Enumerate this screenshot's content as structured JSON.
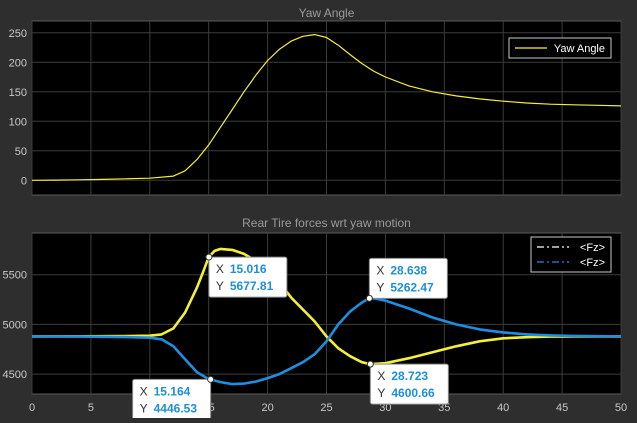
{
  "chart_data": [
    {
      "type": "line",
      "title": "Yaw Angle",
      "xlim": [
        0,
        50
      ],
      "ylim": [
        -25,
        270
      ],
      "xticks": [
        "0",
        "5",
        "10",
        "15",
        "20",
        "25",
        "30",
        "35",
        "40",
        "45",
        "50"
      ],
      "yticks": [
        0,
        50,
        100,
        150,
        200,
        250
      ],
      "show_x_tick_labels": false,
      "grid": true,
      "legend_position": "top-right",
      "series": [
        {
          "name": "Yaw Angle",
          "color": "#f5ef36",
          "style": "solid",
          "x": [
            0,
            2,
            4,
            6,
            8,
            10,
            12,
            13,
            14,
            15,
            16,
            17,
            18,
            19,
            20,
            21,
            22,
            23,
            24,
            25,
            26,
            27,
            28,
            29,
            30,
            32,
            34,
            36,
            38,
            40,
            42,
            44,
            46,
            48,
            50
          ],
          "y": [
            0,
            0.3,
            0.8,
            1.5,
            2.5,
            3.5,
            7,
            16,
            35,
            60,
            90,
            120,
            150,
            178,
            203,
            222,
            236,
            244,
            247,
            242,
            229,
            213,
            198,
            185,
            175,
            160,
            150,
            143,
            138,
            134,
            131,
            129,
            128,
            127,
            126
          ]
        }
      ]
    },
    {
      "type": "line",
      "title": "Rear Tire forces wrt yaw motion",
      "xlim": [
        0,
        50
      ],
      "ylim": [
        4300,
        5920
      ],
      "xticks": [
        "0",
        "5",
        "10",
        "15",
        "20",
        "25",
        "30",
        "35",
        "40",
        "45",
        "50"
      ],
      "yticks": [
        4500,
        5000,
        5500
      ],
      "show_x_tick_labels": true,
      "grid": true,
      "legend_position": "top-right",
      "series": [
        {
          "name": "<Fz>",
          "color": "#f5ef36",
          "legend_color": "#ffffff",
          "style": "dashdot",
          "x": [
            0,
            4,
            8,
            10,
            11,
            12,
            13,
            14,
            14.5,
            15,
            15.5,
            16,
            17,
            18,
            19,
            20,
            21,
            22,
            23,
            24,
            25,
            26,
            27,
            28,
            28.7,
            30,
            32,
            34,
            36,
            38,
            40,
            42,
            44,
            46,
            48,
            50
          ],
          "y": [
            4880,
            4881,
            4883,
            4887,
            4900,
            4960,
            5120,
            5370,
            5520,
            5677.81,
            5740,
            5760,
            5750,
            5710,
            5640,
            5550,
            5420,
            5270,
            5150,
            5030,
            4880,
            4760,
            4680,
            4620,
            4600.66,
            4610,
            4660,
            4720,
            4780,
            4830,
            4860,
            4872,
            4878,
            4880,
            4880,
            4880
          ]
        },
        {
          "name": "<Fz>",
          "color": "#1c8fe0",
          "legend_color": "#1c8fe0",
          "style": "dashdot",
          "x": [
            0,
            4,
            8,
            10,
            11,
            12,
            13,
            14,
            15,
            15.16,
            16,
            17,
            18,
            19,
            20,
            21,
            22,
            23,
            24,
            25,
            26,
            27,
            28,
            28.64,
            29,
            30,
            32,
            34,
            36,
            38,
            40,
            42,
            44,
            46,
            48,
            50
          ],
          "y": [
            4880,
            4878,
            4873,
            4866,
            4850,
            4780,
            4650,
            4520,
            4450,
            4446.53,
            4420,
            4400,
            4405,
            4425,
            4460,
            4500,
            4560,
            4620,
            4700,
            4830,
            5000,
            5130,
            5220,
            5262.47,
            5263,
            5240,
            5160,
            5070,
            5000,
            4950,
            4920,
            4900,
            4890,
            4885,
            4882,
            4880
          ]
        }
      ],
      "annotations": [
        {
          "name": "datatip-1",
          "x": 15.016,
          "y": 5677.81,
          "x_label": "X",
          "y_label": "Y",
          "x_text": "15.016",
          "y_text": "5677.81",
          "box": "below-right"
        },
        {
          "name": "datatip-2",
          "x": 28.638,
          "y": 5262.47,
          "x_label": "X",
          "y_label": "Y",
          "x_text": "28.638",
          "y_text": "5262.47",
          "box": "above-right"
        },
        {
          "name": "datatip-3",
          "x": 15.164,
          "y": 4446.53,
          "x_label": "X",
          "y_label": "Y",
          "x_text": "15.164",
          "y_text": "4446.53",
          "box": "below-left"
        },
        {
          "name": "datatip-4",
          "x": 28.723,
          "y": 4600.66,
          "x_label": "X",
          "y_label": "Y",
          "x_text": "28.723",
          "y_text": "4600.66",
          "box": "below-right"
        }
      ]
    }
  ]
}
